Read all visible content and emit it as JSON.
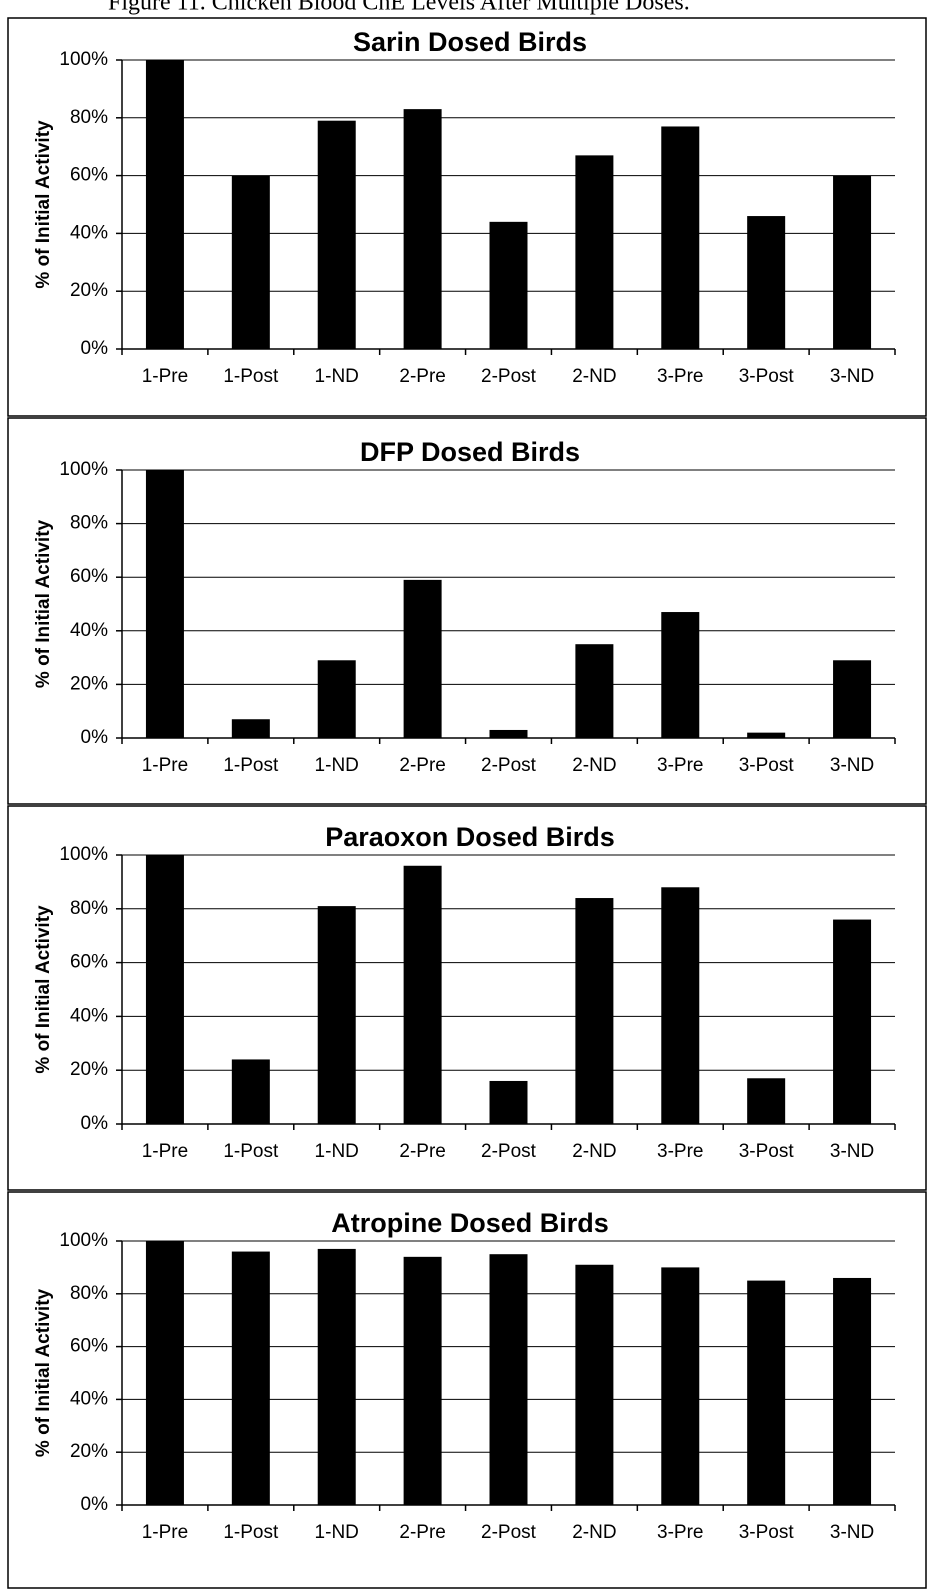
{
  "figure_title": "Figure 11. Chicken Blood ChE Levels After Multiple Doses.",
  "chart_data": [
    {
      "type": "bar",
      "title": "Sarin Dosed Birds",
      "y_label": "% of Initial Activity",
      "categories": [
        "1-Pre",
        "1-Post",
        "1-ND",
        "2-Pre",
        "2-Post",
        "2-ND",
        "3-Pre",
        "3-Post",
        "3-ND"
      ],
      "values": [
        100,
        60,
        79,
        83,
        44,
        67,
        77,
        46,
        60
      ],
      "color": "#000000",
      "ylim": [
        0,
        100
      ],
      "yticks": [
        {
          "value": 0,
          "label": "0%"
        },
        {
          "value": 20,
          "label": "20%"
        },
        {
          "value": 40,
          "label": "40%"
        },
        {
          "value": 60,
          "label": "60%"
        },
        {
          "value": 80,
          "label": "80%"
        },
        {
          "value": 100,
          "label": "100%"
        }
      ],
      "grid": true
    },
    {
      "type": "bar",
      "title": "DFP Dosed Birds",
      "y_label": "% of Initial Activity",
      "categories": [
        "1-Pre",
        "1-Post",
        "1-ND",
        "2-Pre",
        "2-Post",
        "2-ND",
        "3-Pre",
        "3-Post",
        "3-ND"
      ],
      "values": [
        100,
        7,
        29,
        59,
        3,
        35,
        47,
        2,
        29
      ],
      "color": "#000000",
      "ylim": [
        0,
        100
      ],
      "yticks": [
        {
          "value": 0,
          "label": "0%"
        },
        {
          "value": 20,
          "label": "20%"
        },
        {
          "value": 40,
          "label": "40%"
        },
        {
          "value": 60,
          "label": "60%"
        },
        {
          "value": 80,
          "label": "80%"
        },
        {
          "value": 100,
          "label": "100%"
        }
      ],
      "grid": true
    },
    {
      "type": "bar",
      "title": "Paraoxon Dosed Birds",
      "y_label": "% of Initial Activity",
      "categories": [
        "1-Pre",
        "1-Post",
        "1-ND",
        "2-Pre",
        "2-Post",
        "2-ND",
        "3-Pre",
        "3-Post",
        "3-ND"
      ],
      "values": [
        100,
        24,
        81,
        96,
        16,
        84,
        88,
        17,
        76
      ],
      "color": "#000000",
      "ylim": [
        0,
        100
      ],
      "yticks": [
        {
          "value": 0,
          "label": "0%"
        },
        {
          "value": 20,
          "label": "20%"
        },
        {
          "value": 40,
          "label": "40%"
        },
        {
          "value": 60,
          "label": "60%"
        },
        {
          "value": 80,
          "label": "80%"
        },
        {
          "value": 100,
          "label": "100%"
        }
      ],
      "grid": true
    },
    {
      "type": "bar",
      "title": "Atropine Dosed Birds",
      "y_label": "% of Initial Activity",
      "categories": [
        "1-Pre",
        "1-Post",
        "1-ND",
        "2-Pre",
        "2-Post",
        "2-ND",
        "3-Pre",
        "3-Post",
        "3-ND"
      ],
      "values": [
        100,
        96,
        97,
        94,
        95,
        91,
        90,
        85,
        86
      ],
      "color": "#000000",
      "ylim": [
        0,
        100
      ],
      "yticks": [
        {
          "value": 0,
          "label": "0%"
        },
        {
          "value": 20,
          "label": "20%"
        },
        {
          "value": 40,
          "label": "40%"
        },
        {
          "value": 60,
          "label": "60%"
        },
        {
          "value": 80,
          "label": "80%"
        },
        {
          "value": 100,
          "label": "100%"
        }
      ],
      "grid": true
    }
  ]
}
